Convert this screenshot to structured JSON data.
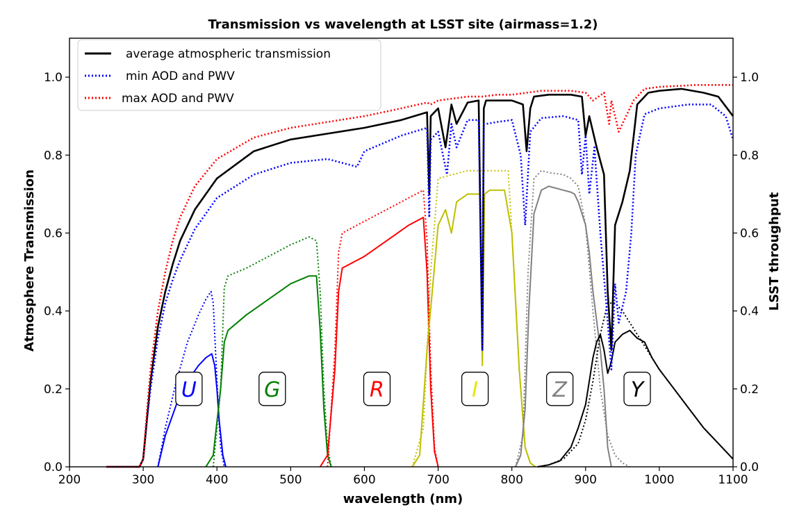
{
  "chart_data": {
    "type": "line",
    "title": "Transmission vs wavelength at LSST site (airmass=1.2)",
    "xlabel": "wavelength (nm)",
    "ylabel": "Atmosphere Transmission",
    "y2label": "LSST throughput",
    "xlim": [
      200,
      1100
    ],
    "ylim": [
      0,
      1.1
    ],
    "xticks": [
      200,
      300,
      400,
      500,
      600,
      700,
      800,
      900,
      1000,
      1100
    ],
    "xtick_labels": [
      "200",
      "300",
      "400",
      "500",
      "600",
      "700",
      "800",
      "900",
      "1000",
      "1100"
    ],
    "yticks": [
      0,
      0.2,
      0.4,
      0.6,
      0.8,
      1.0
    ],
    "ytick_labels": [
      "0.0",
      "0.2",
      "0.4",
      "0.6",
      "0.8",
      "1.0"
    ],
    "y2tick_labels": [
      "0.0",
      "0.2",
      "0.4",
      "0.6",
      "0.8",
      "1.0"
    ],
    "legend_position": "top-left",
    "series": [
      {
        "name": "average atmospheric transmission",
        "color": "#000000",
        "style": "solid",
        "x": [
          250,
          295,
          300,
          305,
          310,
          320,
          330,
          340,
          350,
          370,
          400,
          450,
          500,
          550,
          600,
          650,
          685,
          688,
          690,
          700,
          710,
          718,
          725,
          740,
          755,
          760,
          762,
          765,
          780,
          800,
          815,
          820,
          825,
          830,
          850,
          880,
          895,
          900,
          905,
          915,
          925,
          930,
          935,
          940,
          950,
          960,
          970,
          985,
          1000,
          1030,
          1060,
          1080,
          1100
        ],
        "y": [
          0.0,
          0.0,
          0.02,
          0.12,
          0.22,
          0.36,
          0.45,
          0.52,
          0.58,
          0.66,
          0.74,
          0.81,
          0.84,
          0.855,
          0.87,
          0.89,
          0.91,
          0.7,
          0.9,
          0.92,
          0.82,
          0.93,
          0.88,
          0.935,
          0.94,
          0.3,
          0.92,
          0.94,
          0.94,
          0.94,
          0.93,
          0.81,
          0.92,
          0.95,
          0.955,
          0.955,
          0.95,
          0.85,
          0.9,
          0.82,
          0.75,
          0.45,
          0.3,
          0.62,
          0.68,
          0.76,
          0.93,
          0.96,
          0.965,
          0.97,
          0.96,
          0.95,
          0.9
        ]
      },
      {
        "name": "min AOD and PWV",
        "color": "#0000ff",
        "style": "dotted",
        "x": [
          250,
          295,
          300,
          305,
          310,
          320,
          330,
          340,
          350,
          370,
          400,
          450,
          500,
          550,
          590,
          600,
          650,
          685,
          688,
          690,
          700,
          712,
          718,
          725,
          740,
          755,
          760,
          762,
          765,
          780,
          800,
          812,
          818,
          825,
          840,
          870,
          890,
          895,
          900,
          905,
          912,
          920,
          928,
          935,
          940,
          945,
          955,
          962,
          968,
          980,
          1000,
          1040,
          1070,
          1090,
          1100
        ],
        "y": [
          0.0,
          0.0,
          0.02,
          0.12,
          0.2,
          0.33,
          0.42,
          0.48,
          0.53,
          0.61,
          0.69,
          0.75,
          0.78,
          0.79,
          0.77,
          0.81,
          0.85,
          0.87,
          0.64,
          0.84,
          0.86,
          0.75,
          0.88,
          0.82,
          0.89,
          0.89,
          0.3,
          0.88,
          0.88,
          0.885,
          0.89,
          0.8,
          0.62,
          0.86,
          0.895,
          0.9,
          0.89,
          0.75,
          0.85,
          0.7,
          0.82,
          0.6,
          0.42,
          0.25,
          0.47,
          0.37,
          0.45,
          0.6,
          0.8,
          0.905,
          0.92,
          0.93,
          0.93,
          0.9,
          0.84
        ]
      },
      {
        "name": "max AOD and PWV",
        "color": "#ff0000",
        "style": "dotted",
        "x": [
          250,
          295,
          300,
          305,
          310,
          320,
          330,
          340,
          350,
          370,
          400,
          450,
          500,
          550,
          600,
          650,
          685,
          690,
          700,
          720,
          740,
          760,
          780,
          800,
          820,
          840,
          880,
          900,
          910,
          925,
          932,
          935,
          945,
          955,
          965,
          980,
          1000,
          1050,
          1100
        ],
        "y": [
          0.0,
          0.0,
          0.02,
          0.14,
          0.25,
          0.4,
          0.5,
          0.58,
          0.64,
          0.72,
          0.79,
          0.845,
          0.87,
          0.885,
          0.9,
          0.92,
          0.935,
          0.93,
          0.94,
          0.945,
          0.95,
          0.95,
          0.955,
          0.955,
          0.96,
          0.965,
          0.965,
          0.96,
          0.94,
          0.96,
          0.88,
          0.94,
          0.86,
          0.9,
          0.94,
          0.97,
          0.975,
          0.98,
          0.98
        ]
      }
    ],
    "filter_curves": [
      {
        "band": "U",
        "color": "#0000ff",
        "style": "solid",
        "x": [
          320,
          330,
          345,
          360,
          375,
          385,
          393,
          397,
          400,
          403,
          408,
          412
        ],
        "y": [
          0.0,
          0.08,
          0.16,
          0.22,
          0.26,
          0.28,
          0.29,
          0.26,
          0.2,
          0.12,
          0.03,
          0.0
        ]
      },
      {
        "band": "U",
        "color": "#0000ff",
        "style": "dotted",
        "x": [
          320,
          330,
          345,
          360,
          375,
          385,
          392,
          395,
          398,
          402,
          405,
          410
        ],
        "y": [
          0.0,
          0.1,
          0.22,
          0.32,
          0.39,
          0.43,
          0.45,
          0.42,
          0.3,
          0.15,
          0.05,
          0.0
        ]
      },
      {
        "band": "G",
        "color": "#008000",
        "style": "solid",
        "x": [
          385,
          395,
          405,
          410,
          415,
          440,
          470,
          500,
          525,
          535,
          540,
          545,
          550,
          555
        ],
        "y": [
          0.0,
          0.03,
          0.2,
          0.32,
          0.35,
          0.39,
          0.43,
          0.47,
          0.49,
          0.49,
          0.35,
          0.15,
          0.03,
          0.0
        ]
      },
      {
        "band": "G",
        "color": "#008000",
        "style": "dotted",
        "x": [
          395,
          405,
          410,
          415,
          440,
          470,
          500,
          525,
          535,
          540,
          545,
          550,
          555
        ],
        "y": [
          0.0,
          0.2,
          0.46,
          0.49,
          0.51,
          0.54,
          0.57,
          0.59,
          0.58,
          0.45,
          0.2,
          0.05,
          0.0
        ]
      },
      {
        "band": "R",
        "color": "#ff0000",
        "style": "solid",
        "x": [
          540,
          550,
          560,
          565,
          570,
          600,
          630,
          660,
          680,
          685,
          690,
          695,
          700
        ],
        "y": [
          0.0,
          0.03,
          0.25,
          0.45,
          0.51,
          0.54,
          0.58,
          0.62,
          0.64,
          0.5,
          0.2,
          0.04,
          0.0
        ]
      },
      {
        "band": "R",
        "color": "#ff0000",
        "style": "dotted",
        "x": [
          550,
          560,
          565,
          570,
          600,
          630,
          660,
          680,
          685,
          690,
          695,
          700
        ],
        "y": [
          0.0,
          0.3,
          0.55,
          0.6,
          0.63,
          0.66,
          0.69,
          0.71,
          0.58,
          0.25,
          0.05,
          0.0
        ]
      },
      {
        "band": "I",
        "color": "#bfbf00",
        "style": "solid",
        "x": [
          665,
          675,
          685,
          692,
          700,
          710,
          718,
          725,
          740,
          757,
          760,
          763,
          770,
          790,
          800,
          810,
          818,
          825,
          832
        ],
        "y": [
          0.0,
          0.03,
          0.3,
          0.45,
          0.62,
          0.66,
          0.6,
          0.68,
          0.7,
          0.7,
          0.26,
          0.7,
          0.71,
          0.71,
          0.6,
          0.25,
          0.05,
          0.01,
          0.0
        ]
      },
      {
        "band": "I",
        "color": "#bfbf00",
        "style": "dotted",
        "x": [
          665,
          680,
          690,
          700,
          720,
          740,
          760,
          780,
          795,
          800,
          810,
          818,
          825,
          832
        ],
        "y": [
          0.0,
          0.1,
          0.5,
          0.74,
          0.75,
          0.76,
          0.76,
          0.76,
          0.76,
          0.6,
          0.25,
          0.05,
          0.01,
          0.0
        ]
      },
      {
        "band": "Z",
        "color": "#808080",
        "style": "solid",
        "x": [
          805,
          812,
          818,
          823,
          830,
          840,
          850,
          870,
          880,
          885,
          890,
          895,
          900,
          905,
          910,
          920,
          925,
          930,
          935
        ],
        "y": [
          0.0,
          0.03,
          0.15,
          0.4,
          0.65,
          0.71,
          0.72,
          0.71,
          0.705,
          0.7,
          0.68,
          0.65,
          0.62,
          0.55,
          0.45,
          0.3,
          0.2,
          0.05,
          0.0
        ]
      },
      {
        "band": "Z",
        "color": "#808080",
        "style": "dotted",
        "x": [
          805,
          815,
          822,
          830,
          840,
          850,
          870,
          880,
          890,
          900,
          910,
          920,
          930,
          940,
          950,
          960
        ],
        "y": [
          0.0,
          0.08,
          0.5,
          0.74,
          0.76,
          0.755,
          0.75,
          0.74,
          0.72,
          0.62,
          0.4,
          0.2,
          0.08,
          0.03,
          0.01,
          0.0
        ]
      },
      {
        "band": "Y",
        "color": "#000000",
        "style": "solid",
        "x": [
          835,
          850,
          865,
          880,
          890,
          900,
          905,
          910,
          915,
          920,
          925,
          930,
          935,
          940,
          950,
          960,
          970,
          980,
          990,
          1000,
          1020,
          1040,
          1060,
          1080,
          1100
        ],
        "y": [
          0.0,
          0.005,
          0.015,
          0.05,
          0.1,
          0.16,
          0.22,
          0.28,
          0.32,
          0.34,
          0.3,
          0.24,
          0.27,
          0.32,
          0.34,
          0.35,
          0.33,
          0.32,
          0.28,
          0.25,
          0.2,
          0.15,
          0.1,
          0.06,
          0.02
        ]
      },
      {
        "band": "Y",
        "color": "#000000",
        "style": "dotted",
        "x": [
          835,
          850,
          870,
          890,
          900,
          910,
          920,
          930,
          940,
          950,
          960,
          970,
          980,
          990,
          1000,
          1020,
          1040,
          1060,
          1080,
          1100
        ],
        "y": [
          0.0,
          0.005,
          0.02,
          0.06,
          0.12,
          0.22,
          0.34,
          0.42,
          0.42,
          0.4,
          0.37,
          0.34,
          0.31,
          0.28,
          0.25,
          0.2,
          0.15,
          0.1,
          0.06,
          0.02
        ]
      }
    ],
    "band_labels": [
      {
        "text": "U",
        "x": 362,
        "y": 0.2,
        "color": "#0000ff"
      },
      {
        "text": "G",
        "x": 475,
        "y": 0.2,
        "color": "#008000"
      },
      {
        "text": "R",
        "x": 617,
        "y": 0.2,
        "color": "#ff0000"
      },
      {
        "text": "I",
        "x": 750,
        "y": 0.2,
        "color": "#e6e600"
      },
      {
        "text": "Z",
        "x": 865,
        "y": 0.2,
        "color": "#808080"
      },
      {
        "text": "Y",
        "x": 970,
        "y": 0.2,
        "color": "#000000"
      }
    ]
  }
}
